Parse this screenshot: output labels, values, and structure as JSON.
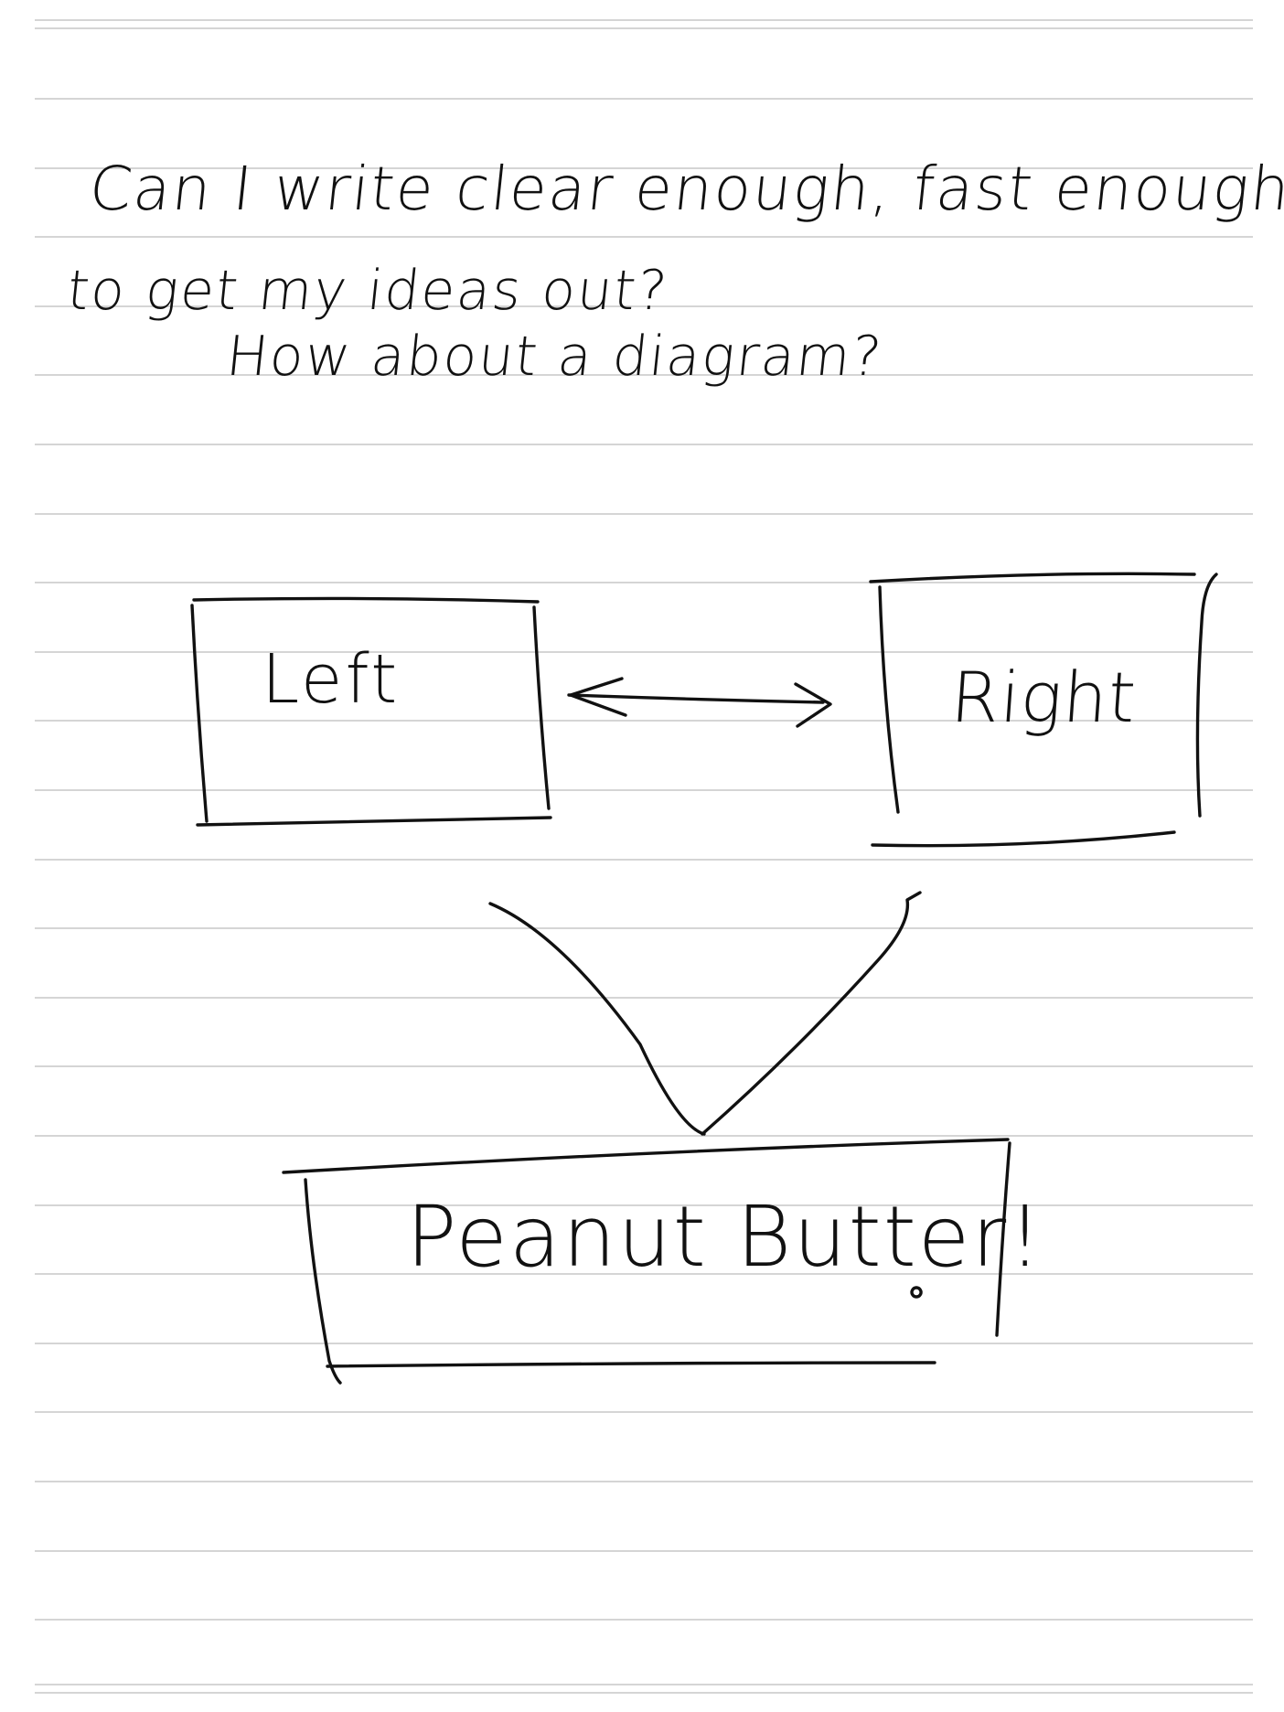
{
  "note": {
    "line_1": "Can I write clear enough, fast enough",
    "line_2": "to get my ideas out?",
    "line_3": "How about a diagram?"
  },
  "diagram": {
    "left_box_label": "Left",
    "right_box_label": "Right",
    "bottom_box_label": "Peanut Butter!"
  },
  "colors": {
    "ink": "#111111",
    "rule_line": "#c7c7c7",
    "paper": "#ffffff"
  }
}
